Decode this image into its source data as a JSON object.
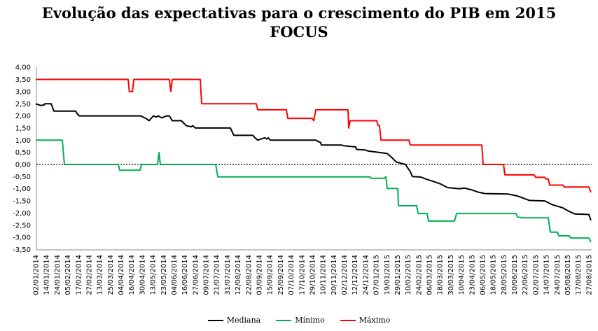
{
  "chart_data": {
    "type": "line",
    "title": "Evolução das expectativas para o crescimento do PIB em 2015",
    "subtitle": "FOCUS",
    "xlabel": "",
    "ylabel": "",
    "ylim": [
      -3.5,
      4.0
    ],
    "yticks": [
      "4,00",
      "3,50",
      "3,00",
      "2,50",
      "2,00",
      "1,50",
      "1,00",
      "0,50",
      "0,00",
      "-0,50",
      "-1,00",
      "-1,50",
      "-2,00",
      "-2,50",
      "-3,00",
      "-3,50"
    ],
    "ytick_values": [
      4,
      3.5,
      3,
      2.5,
      2,
      1.5,
      1,
      0.5,
      0,
      -0.5,
      -1,
      -1.5,
      -2,
      -2.5,
      -3,
      -3.5
    ],
    "x_categories": [
      "02/01/2014",
      "14/01/2014",
      "24/01/2014",
      "05/02/2014",
      "17/02/2014",
      "27/02/2014",
      "13/03/2014",
      "25/03/2014",
      "04/04/2014",
      "16/04/2014",
      "30/04/2014",
      "13/05/2014",
      "23/05/2014",
      "04/06/2014",
      "16/06/2014",
      "27/06/2014",
      "09/07/2014",
      "21/07/2014",
      "31/07/2014",
      "12/08/2014",
      "22/08/2014",
      "03/09/2014",
      "15/09/2014",
      "25/09/2014",
      "07/10/2014",
      "17/10/2014",
      "29/10/2014",
      "10/11/2014",
      "20/11/2014",
      "02/12/2014",
      "12/12/2014",
      "24/12/2014",
      "07/01/2015",
      "19/01/2015",
      "29/01/2015",
      "10/02/2015",
      "24/02/2015",
      "06/03/2015",
      "18/03/2015",
      "30/03/2015",
      "10/04/2015",
      "23/04/2015",
      "06/05/2015",
      "18/05/2015",
      "28/05/2015",
      "10/06/2015",
      "22/06/2015",
      "02/07/2015",
      "14/07/2015",
      "24/07/2015",
      "05/08/2015",
      "17/08/2015",
      "27/08/2015"
    ],
    "x_unit_note": "x in points is the fractional index into x_categories",
    "reference_line": {
      "value": 0,
      "style": "dotted"
    },
    "legend_position": "bottom",
    "series": [
      {
        "name": "Mediana",
        "color": "#000000",
        "points": [
          [
            0,
            2.5
          ],
          [
            0.46,
            2.43
          ],
          [
            0.79,
            2.45
          ],
          [
            0.86,
            2.5
          ],
          [
            1.45,
            2.5
          ],
          [
            1.71,
            2.2
          ],
          [
            3.75,
            2.2
          ],
          [
            3.88,
            2.1
          ],
          [
            4.08,
            2.0
          ],
          [
            9.87,
            2.0
          ],
          [
            10.34,
            1.9
          ],
          [
            10.66,
            1.8
          ],
          [
            11.06,
            2.0
          ],
          [
            11.32,
            1.95
          ],
          [
            11.52,
            2.0
          ],
          [
            11.85,
            1.92
          ],
          [
            12.31,
            2.0
          ],
          [
            12.57,
            2.0
          ],
          [
            12.84,
            1.8
          ],
          [
            13.69,
            1.8
          ],
          [
            14.15,
            1.6
          ],
          [
            14.62,
            1.55
          ],
          [
            14.75,
            1.6
          ],
          [
            15.01,
            1.5
          ],
          [
            18.3,
            1.5
          ],
          [
            18.63,
            1.2
          ],
          [
            20.41,
            1.2
          ],
          [
            20.61,
            1.1
          ],
          [
            20.87,
            1.0
          ],
          [
            21.53,
            1.1
          ],
          [
            21.72,
            1.05
          ],
          [
            21.86,
            1.1
          ],
          [
            22.05,
            1.0
          ],
          [
            26.33,
            1.0
          ],
          [
            26.79,
            0.9
          ],
          [
            26.86,
            0.8
          ],
          [
            28.77,
            0.8
          ],
          [
            28.97,
            0.77
          ],
          [
            30.09,
            0.72
          ],
          [
            30.15,
            0.62
          ],
          [
            30.94,
            0.6
          ],
          [
            31.27,
            0.55
          ],
          [
            32.26,
            0.5
          ],
          [
            33.05,
            0.45
          ],
          [
            33.44,
            0.3
          ],
          [
            33.9,
            0.1
          ],
          [
            34.76,
            0.0
          ],
          [
            35.22,
            -0.3
          ],
          [
            35.42,
            -0.5
          ],
          [
            36.21,
            -0.52
          ],
          [
            36.67,
            -0.6
          ],
          [
            37.39,
            -0.7
          ],
          [
            38.05,
            -0.8
          ],
          [
            38.71,
            -0.95
          ],
          [
            39.83,
            -1.0
          ],
          [
            40.29,
            -0.97
          ],
          [
            41.01,
            -1.05
          ],
          [
            41.67,
            -1.15
          ],
          [
            42.26,
            -1.2
          ],
          [
            44.44,
            -1.22
          ],
          [
            45.29,
            -1.3
          ],
          [
            46.41,
            -1.48
          ],
          [
            47.86,
            -1.5
          ],
          [
            48.52,
            -1.65
          ],
          [
            49.51,
            -1.78
          ],
          [
            50.23,
            -1.95
          ],
          [
            50.69,
            -2.04
          ],
          [
            52.0,
            -2.06
          ],
          [
            52.2,
            -2.3
          ]
        ]
      },
      {
        "name": "Mínimo",
        "color": "#00B050",
        "points": [
          [
            0,
            1.0
          ],
          [
            2.5,
            1.0
          ],
          [
            2.7,
            0
          ],
          [
            7.77,
            0
          ],
          [
            7.9,
            -0.24
          ],
          [
            9.81,
            -0.24
          ],
          [
            9.94,
            0
          ],
          [
            11.46,
            0
          ],
          [
            11.59,
            0.5
          ],
          [
            11.72,
            0
          ],
          [
            16.92,
            0
          ],
          [
            17.12,
            -0.51
          ],
          [
            31.4,
            -0.51
          ],
          [
            31.53,
            -0.57
          ],
          [
            32.78,
            -0.57
          ],
          [
            32.92,
            -0.5
          ],
          [
            33.05,
            -0.99
          ],
          [
            34.04,
            -0.99
          ],
          [
            34.1,
            -1.7
          ],
          [
            35.81,
            -1.7
          ],
          [
            35.95,
            -2.02
          ],
          [
            36.8,
            -2.02
          ],
          [
            36.93,
            -2.33
          ],
          [
            39.37,
            -2.33
          ],
          [
            39.57,
            -2.02
          ],
          [
            45.16,
            -2.02
          ],
          [
            45.29,
            -2.17
          ],
          [
            45.89,
            -2.2
          ],
          [
            48.19,
            -2.2
          ],
          [
            48.39,
            -2.79
          ],
          [
            49.05,
            -2.79
          ],
          [
            49.18,
            -2.94
          ],
          [
            50.16,
            -2.94
          ],
          [
            50.3,
            -3.03
          ],
          [
            52.0,
            -3.03
          ],
          [
            52.2,
            -3.2
          ]
        ]
      },
      {
        "name": "Máximo",
        "color": "#FF0000",
        "points": [
          [
            0,
            3.5
          ],
          [
            8.69,
            3.5
          ],
          [
            8.8,
            3.0
          ],
          [
            9.1,
            3.0
          ],
          [
            9.22,
            3.5
          ],
          [
            12.57,
            3.5
          ],
          [
            12.7,
            3.0
          ],
          [
            12.84,
            3.5
          ],
          [
            15.47,
            3.5
          ],
          [
            15.6,
            2.5
          ],
          [
            20.74,
            2.5
          ],
          [
            20.87,
            2.25
          ],
          [
            23.57,
            2.25
          ],
          [
            23.7,
            1.9
          ],
          [
            26.0,
            1.9
          ],
          [
            26.14,
            1.8
          ],
          [
            26.33,
            2.25
          ],
          [
            29.36,
            2.25
          ],
          [
            29.43,
            1.5
          ],
          [
            29.56,
            1.8
          ],
          [
            32.06,
            1.8
          ],
          [
            32.19,
            1.6
          ],
          [
            32.32,
            1.6
          ],
          [
            32.46,
            1.0
          ],
          [
            35.09,
            1.0
          ],
          [
            35.22,
            0.8
          ],
          [
            41.94,
            0.8
          ],
          [
            42.07,
            0
          ],
          [
            43.98,
            0
          ],
          [
            44.11,
            -0.43
          ],
          [
            46.87,
            -0.43
          ],
          [
            47.0,
            -0.53
          ],
          [
            47.86,
            -0.53
          ],
          [
            48.0,
            -0.6
          ],
          [
            48.19,
            -0.6
          ],
          [
            48.32,
            -0.85
          ],
          [
            49.57,
            -0.85
          ],
          [
            49.7,
            -0.93
          ],
          [
            52.0,
            -0.93
          ],
          [
            52.2,
            -1.15
          ]
        ]
      }
    ]
  }
}
